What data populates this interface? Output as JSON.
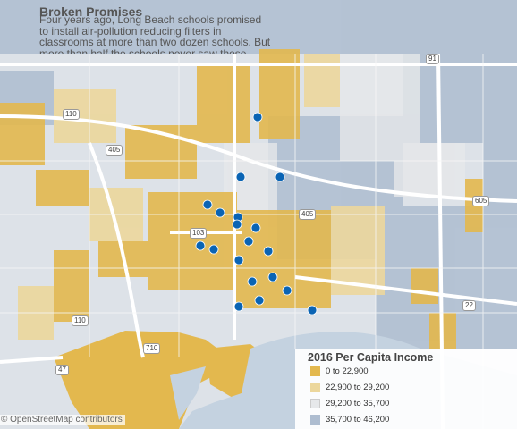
{
  "title": "Broken Promises",
  "description": "Four years ago, Long Beach schools promised to install air-pollution reducing filters in classrooms at more than two dozen schools. But more than half the schools never saw those devices.",
  "legend": {
    "title": "2016 Per Capita Income",
    "items": [
      {
        "label": "0 to 22,900",
        "color": "#e3b84e"
      },
      {
        "label": "22,900 to 29,200",
        "color": "#ecd79c"
      },
      {
        "label": "29,200 to 35,700",
        "color": "#e6e8ea"
      },
      {
        "label": "35,700 to 46,200",
        "color": "#aebdd0"
      }
    ]
  },
  "credit": "© OpenStreetMap contributors",
  "highway_shields": [
    "91",
    "110",
    "405",
    "710",
    "103",
    "405",
    "605",
    "22",
    "110",
    "47"
  ],
  "colors": {
    "school_marker": "#0a64b4",
    "water": "#c4d2e0",
    "land": "#dde2e8"
  },
  "schools_count": 19
}
